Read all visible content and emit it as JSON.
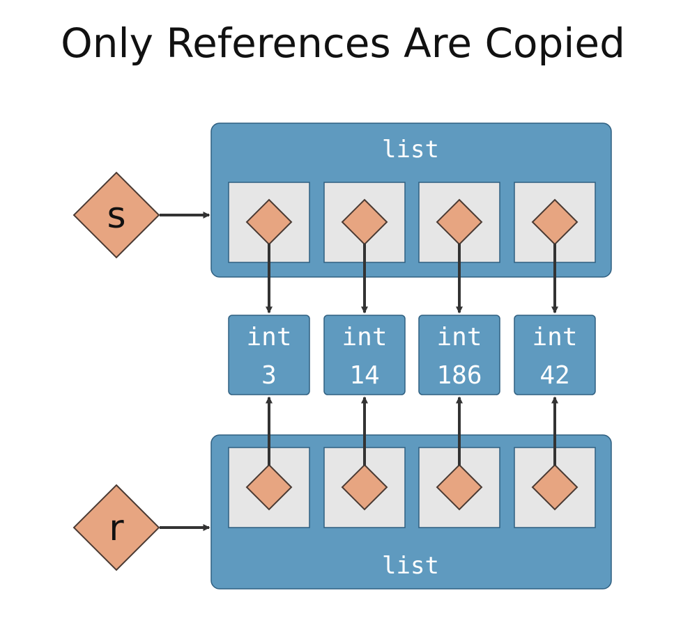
{
  "title": "Only References Are Copied",
  "colors": {
    "list_fill": "#5f9abf",
    "list_stroke": "#2f5f80",
    "cell_fill": "#e6e6e6",
    "reference_fill": "#e7a581",
    "reference_stroke": "#4a3a33",
    "arrow": "#333333",
    "text_light": "#ffffff",
    "text_dark": "#111111"
  },
  "top_list": {
    "type_label": "list",
    "variable": "s",
    "slot_count": 4
  },
  "bottom_list": {
    "type_label": "list",
    "variable": "r",
    "slot_count": 4
  },
  "ints": [
    {
      "type_label": "int",
      "value": "3"
    },
    {
      "type_label": "int",
      "value": "14"
    },
    {
      "type_label": "int",
      "value": "186"
    },
    {
      "type_label": "int",
      "value": "42"
    }
  ]
}
